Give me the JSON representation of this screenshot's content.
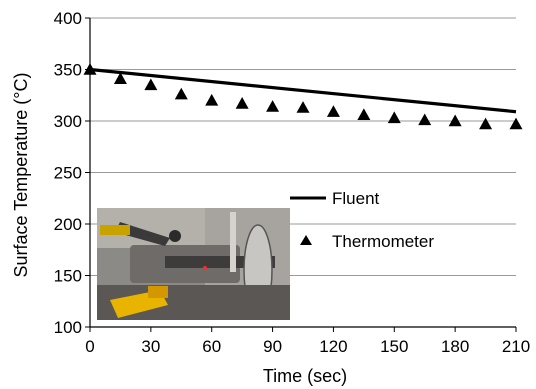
{
  "chart_data": {
    "type": "line",
    "title": "",
    "xlabel": "Time (sec)",
    "ylabel": "Surface Temperature (°C)",
    "xlim": [
      0,
      210
    ],
    "ylim": [
      100,
      400
    ],
    "x_ticks": [
      "0",
      "30",
      "60",
      "90",
      "120",
      "150",
      "180",
      "210"
    ],
    "y_ticks": [
      "100",
      "150",
      "200",
      "250",
      "300",
      "350",
      "400"
    ],
    "grid": "horizontal",
    "legend_placement": "center-right",
    "series": [
      {
        "name": "Fluent",
        "style": "line",
        "color": "#000000",
        "x": [
          0,
          210
        ],
        "y": [
          350,
          309
        ]
      },
      {
        "name": "Thermometer",
        "style": "triangle-markers",
        "color": "#000000",
        "x": [
          0,
          15,
          30,
          45,
          60,
          75,
          90,
          105,
          120,
          135,
          150,
          165,
          180,
          195,
          210
        ],
        "y": [
          350,
          341,
          335,
          326,
          320,
          317,
          314,
          313,
          309,
          306,
          303,
          301,
          300,
          297,
          297
        ]
      }
    ],
    "inset": "photo"
  }
}
